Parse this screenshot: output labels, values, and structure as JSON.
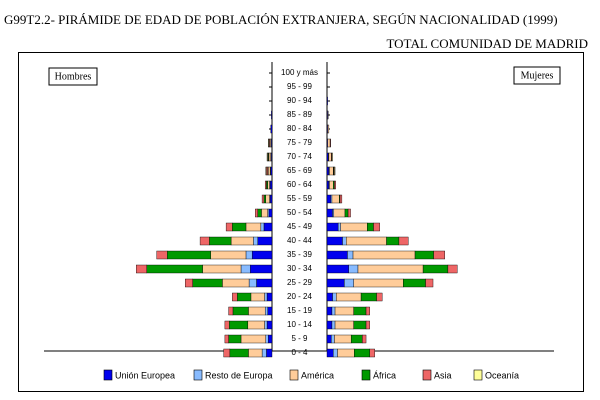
{
  "header": {
    "title": "G99T2.2- PIRÁMIDE DE EDAD DE POBLACIÓN EXTRANJERA, SEGÚN NACIONALIDAD (1999)",
    "subtitle": "TOTAL COMUNIDAD DE MADRID"
  },
  "chart_data": {
    "type": "bar",
    "orientation": "horizontal-pyramid",
    "title": "G99T2.2- PIRÁMIDE DE EDAD DE POBLACIÓN EXTRANJERA, SEGÚN NACIONALIDAD (1999)",
    "subtitle": "TOTAL COMUNIDAD DE MADRID",
    "side_labels": {
      "left": "Hombres",
      "right": "Mujeres"
    },
    "categories": [
      "0 - 4",
      "5 - 9",
      "10 - 14",
      "15 - 19",
      "20 - 24",
      "25 - 29",
      "30 - 34",
      "35 - 39",
      "40 - 44",
      "45 - 49",
      "50 - 54",
      "55 - 59",
      "60 - 64",
      "65 - 69",
      "70 - 74",
      "75 - 79",
      "80 - 84",
      "85 - 89",
      "90 - 94",
      "95 - 99",
      "100 y más"
    ],
    "series": [
      {
        "name": "Unión Europea",
        "color": "#0000ee",
        "hombres": [
          9,
          6,
          8,
          7,
          8,
          25,
          35,
          32,
          23,
          13,
          5,
          3,
          3,
          2,
          1,
          1,
          2,
          1,
          0,
          0,
          0
        ],
        "mujeres": [
          10,
          7,
          8,
          8,
          9,
          28,
          35,
          33,
          25,
          18,
          9,
          6,
          3,
          3,
          2,
          1,
          1,
          1,
          1,
          0,
          0
        ]
      },
      {
        "name": "Resto de Europa",
        "color": "#88bbff",
        "hombres": [
          7,
          4,
          4,
          4,
          4,
          12,
          15,
          10,
          7,
          5,
          2,
          1,
          1,
          1,
          1,
          1,
          0,
          0,
          0,
          0,
          0
        ],
        "mujeres": [
          7,
          5,
          5,
          5,
          6,
          15,
          15,
          9,
          6,
          4,
          2,
          2,
          1,
          1,
          1,
          0,
          0,
          0,
          0,
          0,
          0
        ]
      },
      {
        "name": "América",
        "color": "#ffcc99",
        "hombres": [
          22,
          40,
          27,
          27,
          22,
          43,
          62,
          57,
          36,
          24,
          10,
          6,
          3,
          3,
          3,
          2,
          0,
          0,
          0,
          0,
          0
        ],
        "mujeres": [
          27,
          27,
          30,
          30,
          40,
          80,
          105,
          100,
          65,
          43,
          18,
          12,
          6,
          6,
          4,
          4,
          2,
          1,
          0,
          0,
          0
        ]
      },
      {
        "name": "África",
        "color": "#009900",
        "hombres": [
          30,
          20,
          30,
          25,
          22,
          48,
          90,
          70,
          35,
          22,
          6,
          3,
          2,
          1,
          1,
          0,
          0,
          0,
          0,
          0,
          0
        ],
        "mujeres": [
          25,
          18,
          20,
          20,
          25,
          36,
          40,
          30,
          20,
          10,
          5,
          1,
          2,
          1,
          0,
          0,
          0,
          0,
          0,
          0,
          0
        ]
      },
      {
        "name": "Asia",
        "color": "#ee6666",
        "hombres": [
          10,
          6,
          7,
          7,
          8,
          12,
          17,
          17,
          15,
          10,
          4,
          3,
          2,
          2,
          1,
          1,
          0,
          0,
          0,
          0,
          0
        ],
        "mujeres": [
          8,
          6,
          6,
          6,
          9,
          12,
          15,
          18,
          15,
          10,
          4,
          3,
          2,
          1,
          1,
          1,
          0,
          0,
          0,
          0,
          0
        ]
      },
      {
        "name": "Oceanía",
        "color": "#ffff99",
        "hombres": [
          0,
          0,
          0,
          0,
          0,
          0,
          0,
          0,
          0,
          0,
          0,
          0,
          0,
          1,
          1,
          1,
          0,
          0,
          0,
          0,
          0
        ],
        "mujeres": [
          0,
          0,
          0,
          0,
          0,
          0,
          0,
          0,
          0,
          0,
          0,
          0,
          0,
          1,
          1,
          0,
          0,
          0,
          0,
          0,
          0
        ]
      }
    ],
    "grid": false,
    "legend_position": "bottom"
  }
}
